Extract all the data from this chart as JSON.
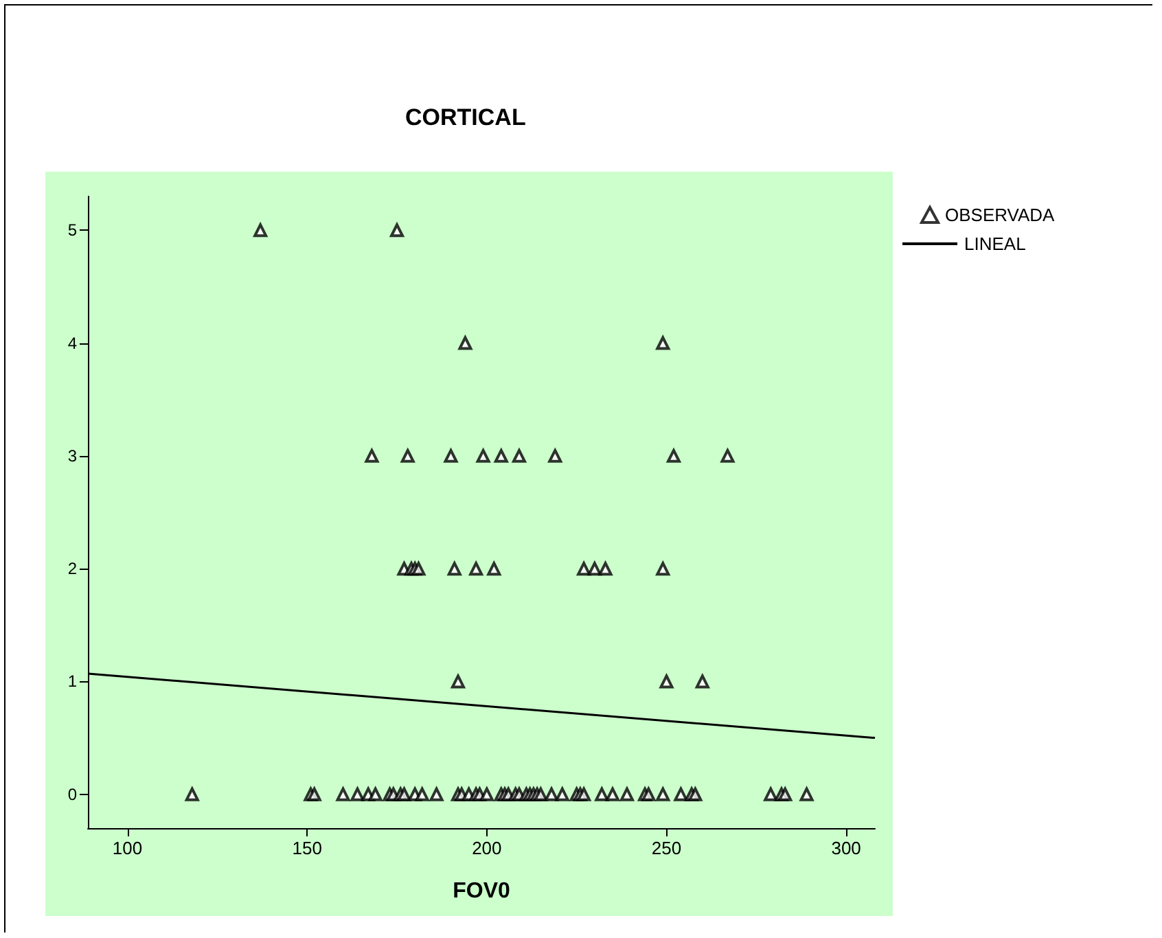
{
  "chart_data": {
    "type": "scatter",
    "title": "CORTICAL",
    "xlabel": "FOV0",
    "xlim": [
      89,
      308
    ],
    "xticks": [
      100,
      150,
      200,
      250,
      300
    ],
    "ylim": [
      -0.3,
      5.3
    ],
    "yticks": [
      0,
      1,
      2,
      3,
      4,
      5
    ],
    "grid": false,
    "legend": "top right",
    "marker": "triangle",
    "series": [
      {
        "name": "OBSERVADA",
        "type": "scatter",
        "color": "#000000",
        "x": [
          137,
          175,
          194,
          249,
          168,
          178,
          190,
          199,
          204,
          209,
          219,
          252,
          267,
          177,
          179,
          180,
          181,
          191,
          197,
          202,
          227,
          230,
          233,
          249,
          192,
          250,
          260,
          118,
          151,
          152,
          160,
          164,
          167,
          169,
          173,
          174,
          176,
          177,
          180,
          182,
          186,
          192,
          193,
          195,
          197,
          198,
          200,
          204,
          205,
          206,
          208,
          209,
          211,
          212,
          213,
          214,
          215,
          218,
          221,
          225,
          226,
          227,
          232,
          235,
          239,
          244,
          245,
          249,
          254,
          257,
          258,
          279,
          282,
          283,
          289
        ],
        "values": [
          5,
          5,
          4,
          4,
          3,
          3,
          3,
          3,
          3,
          3,
          3,
          3,
          3,
          2,
          2,
          2,
          2,
          2,
          2,
          2,
          2,
          2,
          2,
          2,
          1,
          1,
          1,
          0,
          0,
          0,
          0,
          0,
          0,
          0,
          0,
          0,
          0,
          0,
          0,
          0,
          0,
          0,
          0,
          0,
          0,
          0,
          0,
          0,
          0,
          0,
          0,
          0,
          0,
          0,
          0,
          0,
          0,
          0,
          0,
          0,
          0,
          0,
          0,
          0,
          0,
          0,
          0,
          0,
          0,
          0,
          0,
          0,
          0,
          0,
          0
        ]
      },
      {
        "name": "LINEAL",
        "type": "line",
        "color": "#000000",
        "marker": "none",
        "line_style": "solid",
        "x": [
          89,
          308
        ],
        "values": [
          1.07,
          0.5
        ]
      }
    ]
  }
}
